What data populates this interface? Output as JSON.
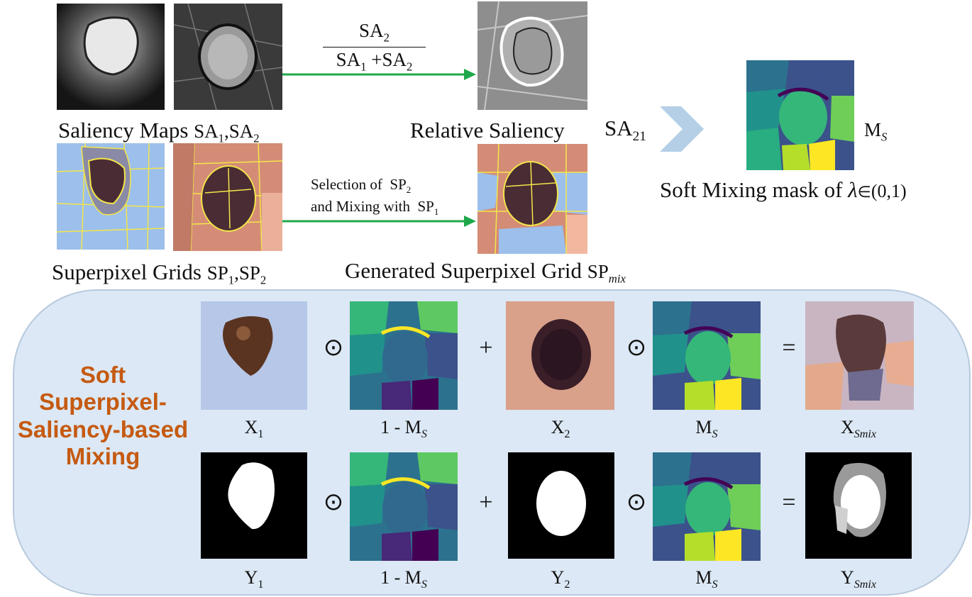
{
  "top": {
    "saliency_maps_caption": "Saliency Maps",
    "saliency_maps_math": "SA",
    "relative_saliency_caption": "Relative Saliency",
    "sa21_label": "SA",
    "sa21_sub": "21",
    "formula_num": "SA",
    "formula_num_sub": "2",
    "formula_den_a": "SA",
    "formula_den_a_sub": "1",
    "formula_plus": "+",
    "formula_den_b": "SA",
    "formula_den_b_sub": "2",
    "ms_label": "M",
    "ms_sub": "S",
    "soft_mask_caption": "Soft Mixing mask of",
    "lambda_expr": "λ",
    "lambda_in": "∈",
    "lambda_range": "(0,1)",
    "superpixel_caption": "Superpixel Grids",
    "sp_math": "SP",
    "selection_line1": "Selection of",
    "selection_line2": "and Mixing with",
    "sp_label": "SP",
    "generated_caption": "Generated Superpixel Grid",
    "sp_mix_sub": "mix"
  },
  "panel": {
    "title": "Soft Superpixel-Saliency-based Mixing",
    "row1": {
      "x1": "X",
      "x1_sub": "1",
      "one_minus": "1 - M",
      "one_minus_sub": "S",
      "x2": "X",
      "x2_sub": "2",
      "ms": "M",
      "ms_sub": "S",
      "xsmix": "X",
      "xsmix_sub": "Smix"
    },
    "row2": {
      "y1": "Y",
      "y1_sub": "1",
      "one_minus": "1 - M",
      "one_minus_sub": "S",
      "y2": "Y",
      "y2_sub": "2",
      "ms": "M",
      "ms_sub": "S",
      "ysmix": "Y",
      "ysmix_sub": "Smix"
    },
    "ops": {
      "odot": "⊙",
      "plus": "+",
      "equals": "="
    }
  },
  "colors": {
    "arrow_green": "#1fa84a",
    "panel_bg": "#dce8f5",
    "title_orange": "#c55a11",
    "chevron": "#b4cfe6"
  }
}
